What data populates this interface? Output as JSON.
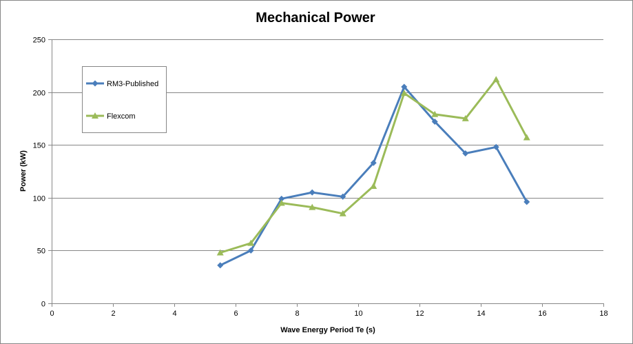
{
  "chart_data": {
    "type": "line",
    "title": "Mechanical Power",
    "xlabel": "Wave Energy Period Te (s)",
    "ylabel": "Power (kW)",
    "xlim": [
      0,
      18
    ],
    "ylim": [
      0,
      250
    ],
    "xticks": [
      0,
      2,
      4,
      6,
      8,
      10,
      12,
      14,
      16,
      18
    ],
    "yticks": [
      0,
      50,
      100,
      150,
      200,
      250
    ],
    "x_tick_labels": [
      "0",
      "2",
      "4",
      "6",
      "8",
      "10",
      "12",
      "14",
      "16",
      "18"
    ],
    "y_tick_labels": [
      "0",
      "50",
      "100",
      "150",
      "200",
      "250"
    ],
    "grid": "horizontal",
    "legend_position": "top-left",
    "series": [
      {
        "name": "RM3-Published",
        "color": "#4a7ebb",
        "marker": "diamond",
        "x": [
          5.5,
          6.5,
          7.5,
          8.5,
          9.5,
          10.5,
          11.5,
          12.5,
          13.5,
          14.5,
          15.5
        ],
        "y": [
          36,
          50,
          99,
          105,
          101,
          133,
          205,
          172,
          142,
          148,
          96
        ]
      },
      {
        "name": "Flexcom",
        "color": "#9bbb59",
        "marker": "triangle",
        "x": [
          5.5,
          6.5,
          7.5,
          8.5,
          9.5,
          10.5,
          11.5,
          12.5,
          13.5,
          14.5,
          15.5
        ],
        "y": [
          48,
          57,
          95,
          91,
          85,
          111,
          199,
          179,
          175,
          212,
          157
        ]
      }
    ]
  }
}
